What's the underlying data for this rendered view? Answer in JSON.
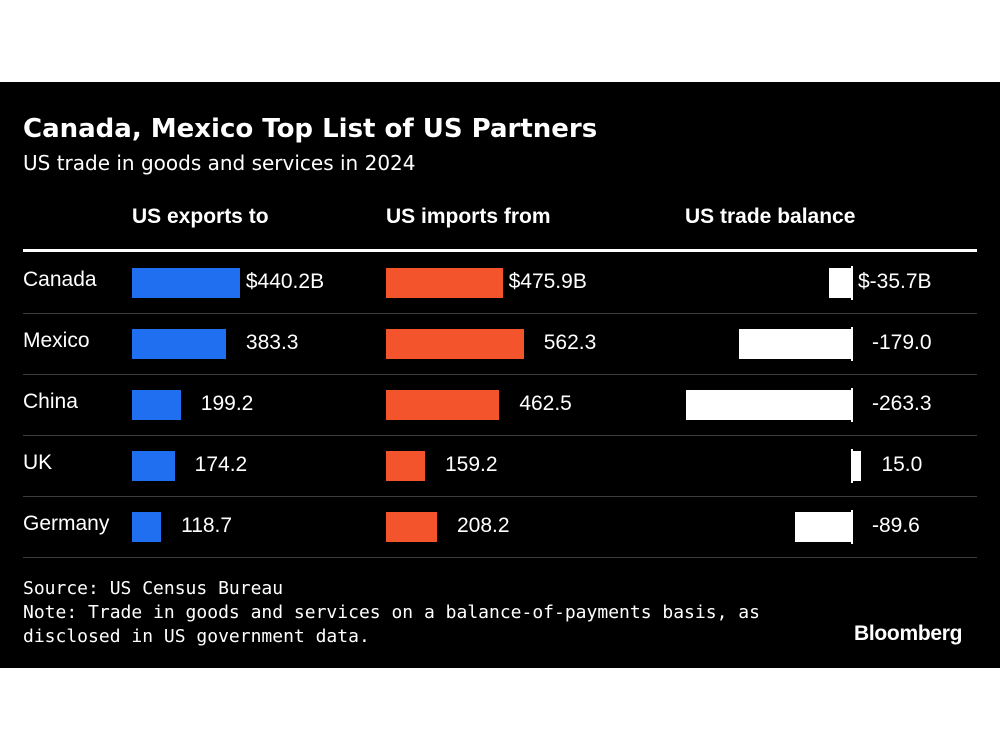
{
  "chart_data": {
    "type": "bar",
    "title": "Canada, Mexico Top List of US Partners",
    "subtitle": "US trade in goods and services in 2024",
    "categories": [
      "Canada",
      "Mexico",
      "China",
      "UK",
      "Germany"
    ],
    "series": [
      {
        "name": "US exports to",
        "values": [
          440.2,
          383.3,
          199.2,
          174.2,
          118.7
        ],
        "labels": [
          "$440.2B",
          "383.3",
          "199.2",
          "174.2",
          "118.7"
        ],
        "color": "#1f6ff0"
      },
      {
        "name": "US imports from",
        "values": [
          475.9,
          562.3,
          462.5,
          159.2,
          208.2
        ],
        "labels": [
          "$475.9B",
          "562.3",
          "462.5",
          "159.2",
          "208.2"
        ],
        "color": "#f4542b"
      },
      {
        "name": "US trade balance",
        "values": [
          -35.7,
          -179.0,
          -263.3,
          15.0,
          -89.6
        ],
        "labels": [
          "$-35.7B",
          "-179.0",
          "-263.3",
          "15.0",
          "-89.6"
        ],
        "color": "#ffffff"
      }
    ],
    "source": "Source: US Census Bureau",
    "note_lines": [
      "Note: Trade in goods and services on a balance-of-payments basis, as",
      "disclosed in US government data."
    ],
    "brand": "Bloomberg",
    "background": "#000000"
  }
}
